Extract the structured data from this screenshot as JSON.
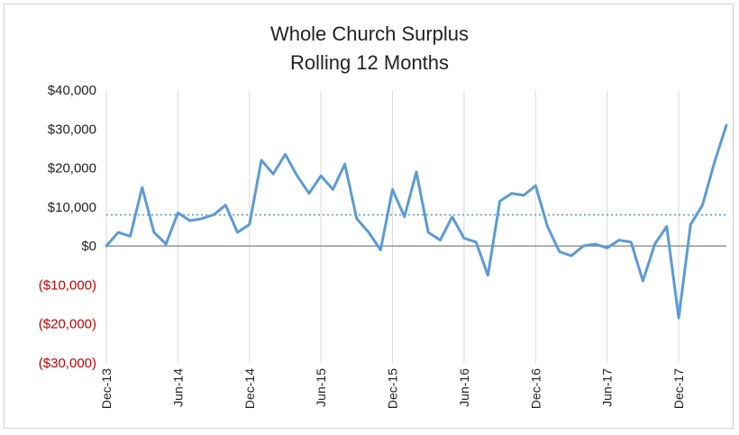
{
  "chart_data": {
    "type": "line",
    "title": "Whole Church Surplus",
    "subtitle": "Rolling 12 Months",
    "xlabel": "",
    "ylabel": "",
    "ylim": [
      -30000,
      40000
    ],
    "y_ticks": [
      {
        "value": 40000,
        "label": "$40,000"
      },
      {
        "value": 30000,
        "label": "$30,000"
      },
      {
        "value": 20000,
        "label": "$20,000"
      },
      {
        "value": 10000,
        "label": "$10,000"
      },
      {
        "value": 0,
        "label": "$0"
      },
      {
        "value": -10000,
        "label": "($10,000)"
      },
      {
        "value": -20000,
        "label": "($20,000)"
      },
      {
        "value": -30000,
        "label": "($30,000)"
      }
    ],
    "x_ticks": [
      "Dec-13",
      "Jun-14",
      "Dec-14",
      "Jun-15",
      "Dec-15",
      "Jun-16",
      "Dec-16",
      "Jun-17",
      "Dec-17"
    ],
    "x": [
      "Dec-13",
      "Jan-14",
      "Feb-14",
      "Mar-14",
      "Apr-14",
      "May-14",
      "Jun-14",
      "Jul-14",
      "Aug-14",
      "Sep-14",
      "Oct-14",
      "Nov-14",
      "Dec-14",
      "Jan-15",
      "Feb-15",
      "Mar-15",
      "Apr-15",
      "May-15",
      "Jun-15",
      "Jul-15",
      "Aug-15",
      "Sep-15",
      "Oct-15",
      "Nov-15",
      "Dec-15",
      "Jan-16",
      "Feb-16",
      "Mar-16",
      "Apr-16",
      "May-16",
      "Jun-16",
      "Jul-16",
      "Aug-16",
      "Sep-16",
      "Oct-16",
      "Nov-16",
      "Dec-16",
      "Jan-17",
      "Feb-17",
      "Mar-17",
      "Apr-17",
      "May-17",
      "Jun-17",
      "Jul-17",
      "Aug-17",
      "Sep-17",
      "Oct-17",
      "Nov-17",
      "Dec-17",
      "Jan-18",
      "Feb-18",
      "Mar-18",
      "Apr-18"
    ],
    "series": [
      {
        "values": [
          0,
          3500,
          2500,
          15000,
          3500,
          500,
          8500,
          6500,
          7000,
          8000,
          10500,
          3500,
          5500,
          22000,
          18500,
          23500,
          18000,
          13500,
          18000,
          14500,
          21000,
          7000,
          3500,
          -1000,
          14500,
          7500,
          19000,
          3500,
          1500,
          7500,
          2000,
          1000,
          -7500,
          11500,
          13500,
          13000,
          15500,
          5000,
          -1500,
          -2500,
          0,
          500,
          -500,
          1500,
          1000,
          -9000,
          500,
          5000,
          -18500,
          5500,
          10500,
          21500,
          31000
        ],
        "color": "#5b9bd5"
      }
    ],
    "reference_line": {
      "value": 8000,
      "style": "dotted",
      "color": "#5b9bd5"
    },
    "zero_line": {
      "value": 0,
      "color": "#7f7f7f"
    },
    "negative_label_color": "#c00000",
    "positive_label_color": "#222222",
    "grid": "vertical",
    "legend": "none"
  }
}
